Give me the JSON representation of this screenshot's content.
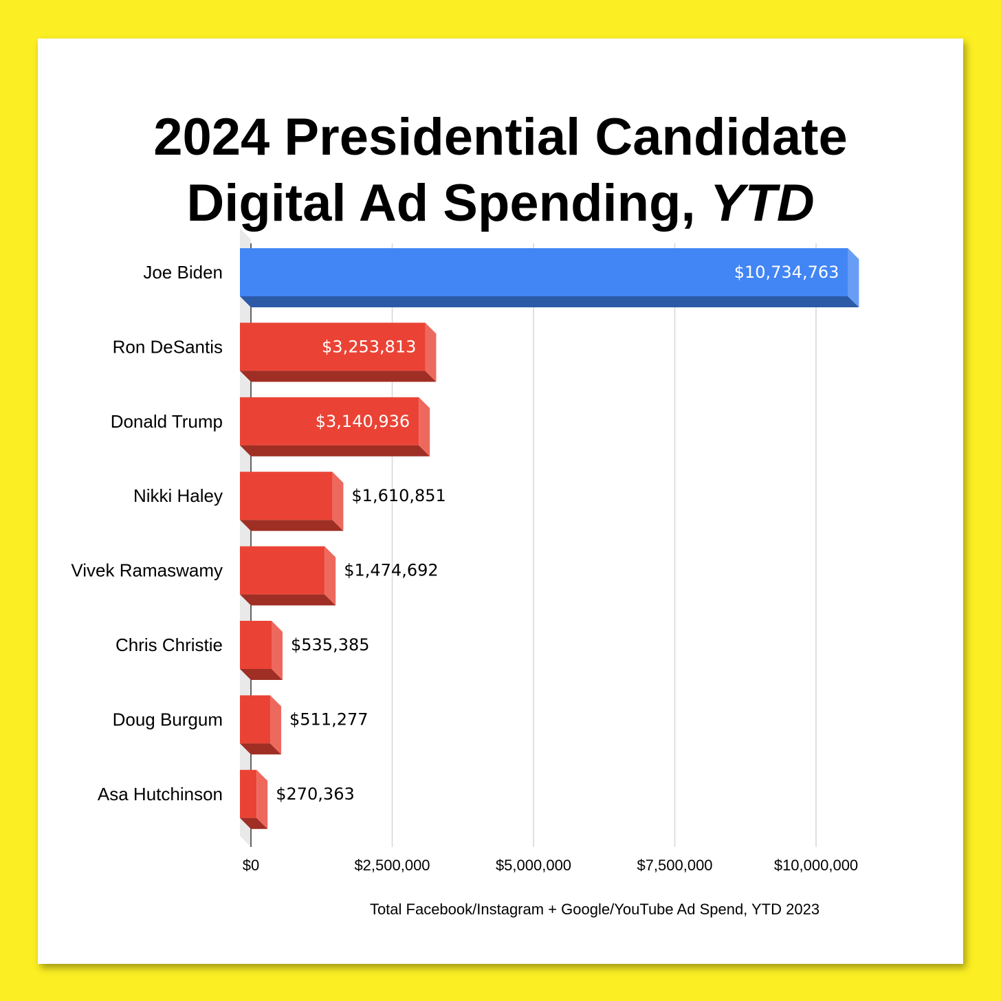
{
  "chart_data": {
    "type": "bar",
    "orientation": "horizontal",
    "title_line1": "2024 Presidential Candidate",
    "title_line2_plain": "Digital Ad Spending, ",
    "title_line2_italic": "YTD",
    "xlabel": "Total Facebook/Instagram + Google/YouTube Ad Spend, YTD 2023",
    "categories": [
      "Joe Biden",
      "Ron DeSantis",
      "Donald Trump",
      "Nikki Haley",
      "Vivek Ramaswamy",
      "Chris Christie",
      "Doug Burgum",
      "Asa Hutchinson"
    ],
    "values": [
      10734763,
      3253813,
      3140936,
      1610851,
      1474692,
      535385,
      511277,
      270363
    ],
    "value_labels": [
      "$10,734,763",
      "$3,253,813",
      "$3,140,936",
      "$1,610,851",
      "$1,474,692",
      "$535,385",
      "$511,277",
      "$270,363"
    ],
    "xlim": [
      0,
      10000000
    ],
    "xticks": [
      0,
      2500000,
      5000000,
      7500000,
      10000000
    ],
    "xtick_labels": [
      "$0",
      "$2,500,000",
      "$5,000,000",
      "$7,500,000",
      "$10,000,000"
    ],
    "grid": true,
    "style": "3d",
    "colors": [
      "#4285f4",
      "#ea4335",
      "#ea4335",
      "#ea4335",
      "#ea4335",
      "#ea4335",
      "#ea4335",
      "#ea4335"
    ]
  },
  "page": {
    "background": "#fbee23",
    "card": "#ffffff"
  }
}
